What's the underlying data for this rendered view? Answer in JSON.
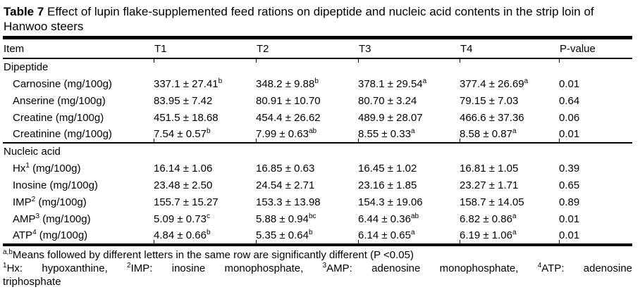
{
  "title": {
    "label": "Table 7",
    "text": " Effect of lupin flake-supplemented feed rations on dipeptide and nucleic acid contents in the strip loin of Hanwoo steers"
  },
  "table": {
    "columns": [
      "Item",
      "T1",
      "T2",
      "T3",
      "T4",
      "P-value"
    ],
    "sections": [
      {
        "header": "Dipeptide",
        "rows": [
          {
            "item": "Carnosine (mg/100g)",
            "values": [
              "337.1 ± 27.41^{b}",
              "348.2 ± 9.88^{b}",
              "378.1 ± 29.54^{a}",
              "377.4 ± 26.69^{a}",
              "0.01"
            ]
          },
          {
            "item": "Anserine (mg/100g)",
            "values": [
              "83.95 ± 7.42",
              "80.91 ± 10.70",
              "80.70 ± 3.24",
              "79.15 ± 7.03",
              "0.64"
            ]
          },
          {
            "item": "Creatine (mg/100g)",
            "values": [
              "451.5 ± 18.68",
              "454.4 ± 26.62",
              "489.9 ± 28.07",
              "466.6 ± 37.36",
              "0.06"
            ]
          },
          {
            "item": "Creatinine (mg/100g)",
            "values": [
              "7.54 ± 0.57^{b}",
              "7.99 ± 0.63^{ab}",
              "8.55 ± 0.33^{a}",
              "8.58 ± 0.87^{a}",
              "0.01"
            ]
          }
        ]
      },
      {
        "header": "Nucleic acid",
        "rows": [
          {
            "item": "Hx^{1} (mg/100g)",
            "values": [
              "16.14 ± 1.06",
              "16.85 ± 0.63",
              "16.45 ± 1.02",
              "16.81 ± 1.05",
              "0.39"
            ]
          },
          {
            "item": "Inosine (mg/100g)",
            "values": [
              "23.48 ± 2.50",
              "24.54 ± 2.71",
              "23.16 ± 1.85",
              "23.27 ± 1.71",
              "0.65"
            ]
          },
          {
            "item": "IMP^{2} (mg/100g)",
            "values": [
              "155.7 ± 15.27",
              "153.3 ± 13.98",
              "154.3 ± 19.06",
              "158.7 ± 14.05",
              "0.89"
            ]
          },
          {
            "item": "AMP^{3} (mg/100g)",
            "values": [
              "5.09 ± 0.73^{c}",
              "5.88 ± 0.94^{bc}",
              "6.44 ± 0.36^{ab}",
              "6.82 ± 0.86^{a}",
              "0.01"
            ]
          },
          {
            "item": "ATP^{4} (mg/100g)",
            "values": [
              "4.84 ± 0.66^{b}",
              "5.35 ± 0.64^{b}",
              "6.14 ± 0.65^{a}",
              "6.19 ± 1.06^{a}",
              "0.01"
            ]
          }
        ]
      }
    ]
  },
  "footnotes": [
    "^{a,b}Means followed by different letters in the same row are significantly different (P <0.05)",
    "^{1}Hx: hypoxanthine, ^{2}IMP: inosine monophosphate, ^{3}AMP: adenosine monophosphate, ^{4}ATP: adenosine triphosphate"
  ],
  "colors": {
    "text": "#000000",
    "background": "#ffffff",
    "rule": "#000000"
  }
}
